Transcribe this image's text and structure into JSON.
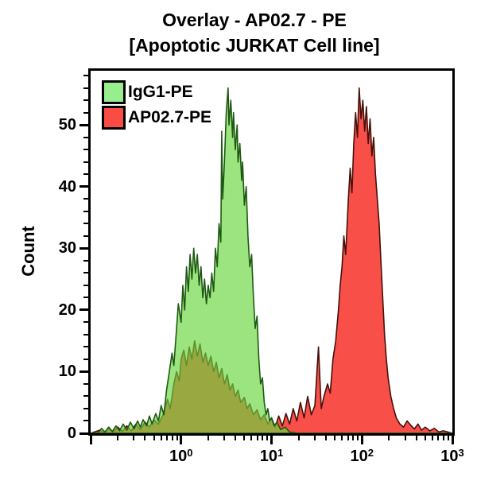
{
  "title": {
    "line1": "Overlay - AP02.7 - PE",
    "line2": "[Apoptotic JURKAT Cell line]"
  },
  "legend": [
    {
      "label": "IgG1-PE",
      "swatch_color": "#98ed8d",
      "swatch_border": "#000000"
    },
    {
      "label": "AP02.7-PE",
      "swatch_color": "#fb4b45",
      "swatch_border": "#000000"
    }
  ],
  "chart_data": {
    "type": "area",
    "subtype": "flow-cytometry-overlay-histogram",
    "title": "Overlay - AP02.7 - PE [Apoptotic JURKAT Cell line]",
    "xlabel": "",
    "ylabel": "Count",
    "grid": false,
    "legend_position": "top-left",
    "x_scale": "log10",
    "x_range_log": [
      -1,
      3
    ],
    "x_major_logs": [
      -1,
      0,
      1,
      2,
      3
    ],
    "x_tick_labels": [
      {
        "log": 0,
        "base": "10",
        "sup": "0"
      },
      {
        "log": 1,
        "base": "10",
        "sup": "1"
      },
      {
        "log": 2,
        "base": "10",
        "sup": "2"
      },
      {
        "log": 3,
        "base": "10",
        "sup": "3"
      }
    ],
    "y_max": 58.8,
    "y_ticks": [
      0,
      10,
      20,
      30,
      40,
      50
    ],
    "y_minor_step": 2,
    "frame_color": "#000000",
    "draw_order": [
      "AP02.7-PE",
      "IgG1-PE"
    ],
    "series": [
      {
        "name": "IgG1-PE",
        "fill": "rgba(104,214,62,0.66)",
        "stroke": "#1e5a12",
        "stroke_width": 1.6,
        "points": [
          [
            -1.0,
            0
          ],
          [
            -0.92,
            0
          ],
          [
            -0.88,
            0.8
          ],
          [
            -0.84,
            0.2
          ],
          [
            -0.8,
            1
          ],
          [
            -0.76,
            0.3
          ],
          [
            -0.72,
            1.2
          ],
          [
            -0.68,
            0.4
          ],
          [
            -0.64,
            1.5
          ],
          [
            -0.6,
            0.5
          ],
          [
            -0.56,
            1.8
          ],
          [
            -0.52,
            0.7
          ],
          [
            -0.48,
            2
          ],
          [
            -0.45,
            1
          ],
          [
            -0.42,
            2.2
          ],
          [
            -0.38,
            1.2
          ],
          [
            -0.35,
            2.8
          ],
          [
            -0.32,
            1.5
          ],
          [
            -0.28,
            3.2
          ],
          [
            -0.25,
            2
          ],
          [
            -0.22,
            4.5
          ],
          [
            -0.19,
            3
          ],
          [
            -0.16,
            7
          ],
          [
            -0.13,
            10
          ],
          [
            -0.1,
            13
          ],
          [
            -0.08,
            11
          ],
          [
            -0.05,
            17
          ],
          [
            -0.03,
            21
          ],
          [
            0.0,
            18
          ],
          [
            0.02,
            24
          ],
          [
            0.04,
            20
          ],
          [
            0.06,
            27
          ],
          [
            0.08,
            23
          ],
          [
            0.1,
            29
          ],
          [
            0.12,
            25
          ],
          [
            0.14,
            30
          ],
          [
            0.16,
            26
          ],
          [
            0.18,
            29
          ],
          [
            0.2,
            24
          ],
          [
            0.22,
            27
          ],
          [
            0.24,
            22
          ],
          [
            0.26,
            25
          ],
          [
            0.28,
            21
          ],
          [
            0.3,
            24
          ],
          [
            0.32,
            22
          ],
          [
            0.34,
            26
          ],
          [
            0.36,
            23
          ],
          [
            0.38,
            30
          ],
          [
            0.4,
            27
          ],
          [
            0.42,
            34
          ],
          [
            0.44,
            31
          ],
          [
            0.45,
            49
          ],
          [
            0.46,
            38
          ],
          [
            0.48,
            44
          ],
          [
            0.5,
            52
          ],
          [
            0.52,
            56
          ],
          [
            0.53,
            50
          ],
          [
            0.55,
            54
          ],
          [
            0.57,
            48
          ],
          [
            0.58,
            52
          ],
          [
            0.6,
            46
          ],
          [
            0.62,
            50
          ],
          [
            0.63,
            44
          ],
          [
            0.65,
            47
          ],
          [
            0.67,
            41
          ],
          [
            0.68,
            44
          ],
          [
            0.7,
            37
          ],
          [
            0.72,
            40
          ],
          [
            0.74,
            32
          ],
          [
            0.76,
            27
          ],
          [
            0.78,
            29
          ],
          [
            0.8,
            22
          ],
          [
            0.82,
            17
          ],
          [
            0.84,
            19
          ],
          [
            0.86,
            12
          ],
          [
            0.88,
            8
          ],
          [
            0.9,
            9
          ],
          [
            0.92,
            5
          ],
          [
            0.94,
            3
          ],
          [
            0.96,
            4
          ],
          [
            0.98,
            2
          ],
          [
            1.0,
            2.5
          ],
          [
            1.03,
            1.2
          ],
          [
            1.06,
            1.8
          ],
          [
            1.1,
            0.6
          ],
          [
            1.15,
            1
          ],
          [
            1.2,
            0.2
          ],
          [
            1.3,
            0
          ],
          [
            3.0,
            0
          ]
        ]
      },
      {
        "name": "AP02.7-PE",
        "fill": "#f84f48",
        "stroke": "#47100b",
        "stroke_width": 1.6,
        "points": [
          [
            -1.0,
            0
          ],
          [
            -0.9,
            0.5
          ],
          [
            -0.85,
            0.1
          ],
          [
            -0.8,
            0.8
          ],
          [
            -0.75,
            0.2
          ],
          [
            -0.7,
            1
          ],
          [
            -0.65,
            0.3
          ],
          [
            -0.6,
            1.2
          ],
          [
            -0.55,
            0.4
          ],
          [
            -0.5,
            1.5
          ],
          [
            -0.45,
            0.6
          ],
          [
            -0.4,
            1.8
          ],
          [
            -0.35,
            1
          ],
          [
            -0.3,
            2.2
          ],
          [
            -0.25,
            1.5
          ],
          [
            -0.2,
            3
          ],
          [
            -0.15,
            5.5
          ],
          [
            -0.12,
            4
          ],
          [
            -0.08,
            8
          ],
          [
            -0.05,
            10
          ],
          [
            -0.02,
            8.5
          ],
          [
            0.0,
            12
          ],
          [
            0.03,
            13.5
          ],
          [
            0.06,
            11
          ],
          [
            0.09,
            14
          ],
          [
            0.12,
            12
          ],
          [
            0.15,
            15
          ],
          [
            0.18,
            12.5
          ],
          [
            0.21,
            14.5
          ],
          [
            0.24,
            11.5
          ],
          [
            0.27,
            13
          ],
          [
            0.3,
            11
          ],
          [
            0.33,
            12.5
          ],
          [
            0.36,
            10
          ],
          [
            0.39,
            11.5
          ],
          [
            0.42,
            9
          ],
          [
            0.45,
            10.5
          ],
          [
            0.48,
            8
          ],
          [
            0.51,
            9.5
          ],
          [
            0.54,
            7
          ],
          [
            0.57,
            8
          ],
          [
            0.6,
            6
          ],
          [
            0.63,
            7
          ],
          [
            0.66,
            5
          ],
          [
            0.7,
            5.8
          ],
          [
            0.73,
            4
          ],
          [
            0.76,
            4.8
          ],
          [
            0.8,
            3
          ],
          [
            0.84,
            3.8
          ],
          [
            0.88,
            2.2
          ],
          [
            0.92,
            3
          ],
          [
            0.96,
            1.5
          ],
          [
            1.0,
            2.5
          ],
          [
            1.04,
            1
          ],
          [
            1.08,
            2.8
          ],
          [
            1.12,
            1.2
          ],
          [
            1.16,
            3.2
          ],
          [
            1.2,
            1.5
          ],
          [
            1.24,
            4
          ],
          [
            1.28,
            2
          ],
          [
            1.32,
            5
          ],
          [
            1.36,
            2.5
          ],
          [
            1.4,
            6
          ],
          [
            1.44,
            3
          ],
          [
            1.48,
            4.5
          ],
          [
            1.52,
            14
          ],
          [
            1.55,
            4
          ],
          [
            1.58,
            6
          ],
          [
            1.62,
            8
          ],
          [
            1.65,
            6.5
          ],
          [
            1.68,
            12
          ],
          [
            1.71,
            15
          ],
          [
            1.74,
            20
          ],
          [
            1.76,
            24
          ],
          [
            1.78,
            27
          ],
          [
            1.8,
            32
          ],
          [
            1.82,
            29
          ],
          [
            1.85,
            38
          ],
          [
            1.87,
            43
          ],
          [
            1.89,
            39
          ],
          [
            1.91,
            47
          ],
          [
            1.93,
            52
          ],
          [
            1.95,
            48
          ],
          [
            1.97,
            56
          ],
          [
            1.99,
            51
          ],
          [
            2.01,
            54
          ],
          [
            2.03,
            49
          ],
          [
            2.05,
            53
          ],
          [
            2.07,
            47
          ],
          [
            2.09,
            51
          ],
          [
            2.11,
            45
          ],
          [
            2.13,
            48
          ],
          [
            2.15,
            42
          ],
          [
            2.17,
            38
          ],
          [
            2.19,
            34
          ],
          [
            2.21,
            28
          ],
          [
            2.23,
            22
          ],
          [
            2.25,
            16
          ],
          [
            2.27,
            12
          ],
          [
            2.29,
            9
          ],
          [
            2.32,
            6
          ],
          [
            2.35,
            4
          ],
          [
            2.38,
            2.5
          ],
          [
            2.42,
            1.5
          ],
          [
            2.46,
            1
          ],
          [
            2.5,
            2
          ],
          [
            2.54,
            1.3
          ],
          [
            2.58,
            0.7
          ],
          [
            2.62,
            1.5
          ],
          [
            2.66,
            0.5
          ],
          [
            2.7,
            1
          ],
          [
            2.75,
            0.4
          ],
          [
            2.8,
            0.8
          ],
          [
            2.85,
            0.2
          ],
          [
            2.9,
            0.4
          ],
          [
            3.0,
            0
          ]
        ]
      }
    ]
  }
}
